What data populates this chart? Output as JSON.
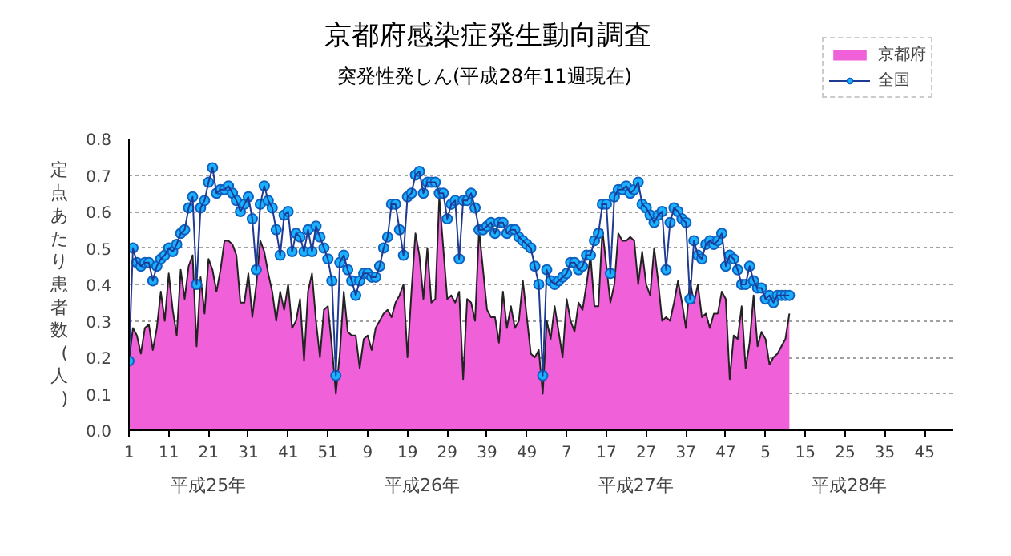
{
  "chart_data": {
    "type": "area",
    "title": "京都府感染症発生動向調査",
    "subtitle": "突発性発しん(平成28年11週現在)",
    "ylabel": "定点あたり患者数(人)",
    "categories": [
      "1",
      null,
      null,
      null,
      null,
      null,
      null,
      null,
      null,
      null,
      "11",
      null,
      null,
      null,
      null,
      null,
      null,
      null,
      null,
      null,
      "21",
      null,
      null,
      null,
      null,
      null,
      null,
      null,
      null,
      null,
      "31",
      null,
      null,
      null,
      null,
      null,
      null,
      null,
      null,
      null,
      "41",
      null,
      null,
      null,
      null,
      null,
      null,
      null,
      null,
      null,
      "51",
      null,
      null,
      null,
      null,
      null,
      null,
      null,
      null,
      null,
      "9",
      null,
      null,
      null,
      null,
      null,
      null,
      null,
      null,
      null,
      "19",
      null,
      null,
      null,
      null,
      null,
      null,
      null,
      null,
      null,
      "29",
      null,
      null,
      null,
      null,
      null,
      null,
      null,
      null,
      null,
      "39",
      null,
      null,
      null,
      null,
      null,
      null,
      null,
      null,
      null,
      "49",
      null,
      null,
      null,
      null,
      null,
      null,
      null,
      null,
      null,
      "7",
      null,
      null,
      null,
      null,
      null,
      null,
      null,
      null,
      null,
      "17",
      null,
      null,
      null,
      null,
      null,
      null,
      null,
      null,
      null,
      "27",
      null,
      null,
      null,
      null,
      null,
      null,
      null,
      null,
      null,
      "37",
      null,
      null,
      null,
      null,
      null,
      null,
      null,
      null,
      null,
      "47",
      null,
      null,
      null,
      null,
      null,
      null,
      null,
      null,
      null,
      "5",
      null,
      null,
      null,
      null,
      null,
      null,
      null,
      null,
      null,
      "15",
      null,
      null,
      null,
      null,
      null,
      null,
      null,
      null,
      null,
      "25",
      null,
      null,
      null,
      null,
      null,
      null,
      null,
      null,
      null,
      "35",
      null,
      null,
      null,
      null,
      null,
      null,
      null,
      null,
      null,
      "45",
      null,
      null,
      null,
      null,
      null,
      null,
      null
    ],
    "series": [
      {
        "name": "京都府",
        "color": "#f060d8",
        "values": [
          0.19,
          0.28,
          0.26,
          0.21,
          0.28,
          0.29,
          0.22,
          0.28,
          0.38,
          0.3,
          0.43,
          0.33,
          0.26,
          0.44,
          0.36,
          0.45,
          0.48,
          0.23,
          0.42,
          0.32,
          0.47,
          0.44,
          0.38,
          0.44,
          0.52,
          0.52,
          0.51,
          0.48,
          0.35,
          0.35,
          0.43,
          0.31,
          0.4,
          0.52,
          0.49,
          0.43,
          0.38,
          0.3,
          0.38,
          0.33,
          0.4,
          0.28,
          0.3,
          0.36,
          0.19,
          0.38,
          0.43,
          0.3,
          0.2,
          0.33,
          0.34,
          0.23,
          0.1,
          0.21,
          0.38,
          0.27,
          0.26,
          0.26,
          0.17,
          0.25,
          0.26,
          0.22,
          0.28,
          0.3,
          0.32,
          0.33,
          0.31,
          0.35,
          0.37,
          0.4,
          0.2,
          0.38,
          0.54,
          0.48,
          0.36,
          0.5,
          0.35,
          0.36,
          0.64,
          0.5,
          0.36,
          0.37,
          0.35,
          0.38,
          0.14,
          0.36,
          0.35,
          0.3,
          0.55,
          0.44,
          0.33,
          0.31,
          0.31,
          0.24,
          0.38,
          0.28,
          0.34,
          0.28,
          0.3,
          0.41,
          0.31,
          0.21,
          0.2,
          0.22,
          0.1,
          0.3,
          0.25,
          0.34,
          0.27,
          0.2,
          0.36,
          0.3,
          0.27,
          0.35,
          0.33,
          0.4,
          0.48,
          0.34,
          0.34,
          0.55,
          0.45,
          0.35,
          0.4,
          0.54,
          0.52,
          0.52,
          0.53,
          0.52,
          0.4,
          0.49,
          0.4,
          0.37,
          0.5,
          0.41,
          0.3,
          0.31,
          0.3,
          0.35,
          0.41,
          0.35,
          0.28,
          0.41,
          0.35,
          0.4,
          0.31,
          0.32,
          0.28,
          0.32,
          0.32,
          0.38,
          0.36,
          0.14,
          0.26,
          0.25,
          0.34,
          0.17,
          0.24,
          0.37,
          0.23,
          0.27,
          0.25,
          0.18,
          0.2,
          0.21,
          0.23,
          0.25,
          0.32,
          null,
          null,
          null,
          null,
          null,
          null,
          null,
          null,
          null,
          null,
          null,
          null,
          null,
          null,
          null,
          null,
          null,
          null,
          null,
          null,
          null,
          null,
          null,
          null,
          null,
          null,
          null,
          null,
          null,
          null,
          null,
          null,
          null,
          null,
          null,
          null,
          null,
          null,
          null,
          null,
          null
        ]
      },
      {
        "name": "全国",
        "type": "line",
        "marker": "circle",
        "color": "#1ab2ff",
        "values": [
          0.19,
          0.5,
          0.46,
          0.45,
          0.46,
          0.46,
          0.41,
          0.45,
          0.47,
          0.48,
          0.5,
          0.49,
          0.51,
          0.54,
          0.55,
          0.61,
          0.64,
          0.4,
          0.61,
          0.63,
          0.68,
          0.72,
          0.65,
          0.66,
          0.66,
          0.67,
          0.65,
          0.63,
          0.6,
          0.62,
          0.64,
          0.58,
          0.44,
          0.62,
          0.67,
          0.63,
          0.61,
          0.55,
          0.48,
          0.59,
          0.6,
          0.49,
          0.54,
          0.53,
          0.49,
          0.55,
          0.49,
          0.56,
          0.53,
          0.5,
          0.47,
          0.41,
          0.15,
          0.46,
          0.48,
          0.44,
          0.41,
          0.37,
          0.41,
          0.43,
          0.43,
          0.42,
          0.42,
          0.45,
          0.5,
          0.53,
          0.62,
          0.62,
          0.55,
          0.48,
          0.64,
          0.65,
          0.7,
          0.71,
          0.65,
          0.68,
          0.68,
          0.68,
          0.65,
          0.65,
          0.58,
          0.62,
          0.63,
          0.47,
          0.63,
          0.63,
          0.65,
          0.61,
          0.55,
          0.55,
          0.56,
          0.57,
          0.54,
          0.57,
          0.57,
          0.54,
          0.55,
          0.55,
          0.53,
          0.52,
          0.51,
          0.5,
          0.45,
          0.4,
          0.15,
          0.44,
          0.41,
          0.4,
          0.41,
          0.42,
          0.43,
          0.46,
          0.46,
          0.44,
          0.45,
          0.48,
          0.48,
          0.52,
          0.54,
          0.62,
          0.62,
          0.43,
          0.64,
          0.66,
          0.66,
          0.67,
          0.65,
          0.66,
          0.68,
          0.62,
          0.61,
          0.59,
          0.57,
          0.59,
          0.6,
          0.44,
          0.57,
          0.61,
          0.6,
          0.58,
          0.57,
          0.36,
          0.52,
          0.48,
          0.47,
          0.51,
          0.52,
          0.51,
          0.52,
          0.54,
          0.45,
          0.48,
          0.47,
          0.44,
          0.4,
          0.4,
          0.45,
          0.41,
          0.39,
          0.39,
          0.36,
          0.37,
          0.35,
          0.37,
          0.37,
          0.37,
          0.37,
          null,
          null,
          null,
          null,
          null,
          null,
          null,
          null,
          null,
          null,
          null,
          null,
          null,
          null,
          null,
          null,
          null,
          null,
          null,
          null,
          null,
          null,
          null,
          null,
          null,
          null,
          null,
          null,
          null,
          null,
          null,
          null,
          null,
          null,
          null,
          null,
          null,
          null,
          null,
          null,
          null
        ]
      }
    ],
    "ylim": [
      0,
      0.8
    ],
    "yticks": [
      {
        "value": 0,
        "label": "0.0"
      },
      0.1,
      0.2,
      0.3,
      0.4,
      0.5,
      0.6,
      0.7,
      0.8
    ],
    "annotations": [
      "平成25年",
      "平成26年",
      "平成27年",
      "平成28年"
    ],
    "grid": "y",
    "legend": "top right"
  }
}
